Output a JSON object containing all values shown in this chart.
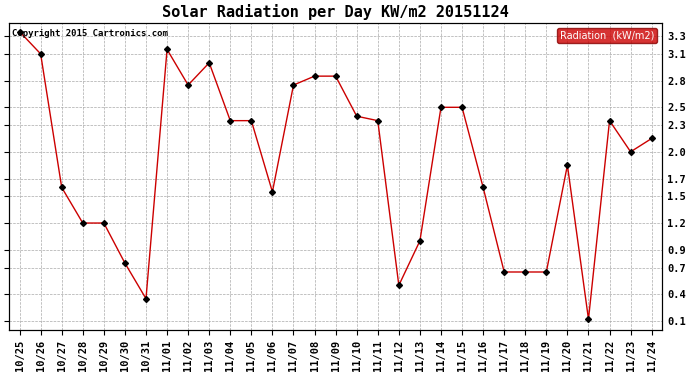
{
  "title": "Solar Radiation per Day KW/m2 20151124",
  "copyright": "Copyright 2015 Cartronics.com",
  "legend_label": "Radiation  (kW/m2)",
  "x_labels": [
    "10/25",
    "10/26",
    "10/27",
    "10/28",
    "10/29",
    "10/30",
    "10/31",
    "11/01",
    "11/02",
    "11/03",
    "11/04",
    "11/05",
    "11/06",
    "11/07",
    "11/08",
    "11/09",
    "11/10",
    "11/11",
    "11/12",
    "11/13",
    "11/14",
    "11/15",
    "11/16",
    "11/17",
    "11/18",
    "11/19",
    "11/20",
    "11/21",
    "11/22",
    "11/23",
    "11/24"
  ],
  "y_values": [
    3.35,
    3.1,
    1.6,
    1.2,
    1.2,
    0.75,
    0.35,
    3.15,
    2.75,
    3.0,
    2.35,
    2.35,
    1.55,
    2.75,
    2.85,
    2.85,
    2.4,
    2.35,
    0.5,
    1.0,
    2.5,
    2.5,
    1.6,
    0.65,
    0.65,
    0.65,
    1.85,
    0.12,
    2.35,
    2.0,
    2.15
  ],
  "y_ticks": [
    0.1,
    0.4,
    0.7,
    0.9,
    1.2,
    1.5,
    1.7,
    2.0,
    2.3,
    2.5,
    2.8,
    3.1,
    3.3
  ],
  "ylim": [
    0.0,
    3.45
  ],
  "line_color": "#cc0000",
  "marker_color": "#000000",
  "bg_color": "#ffffff",
  "grid_color": "#aaaaaa",
  "legend_bg": "#cc0000",
  "legend_text_color": "#ffffff",
  "title_fontsize": 11,
  "tick_fontsize": 7.5,
  "copyright_fontsize": 6.5
}
